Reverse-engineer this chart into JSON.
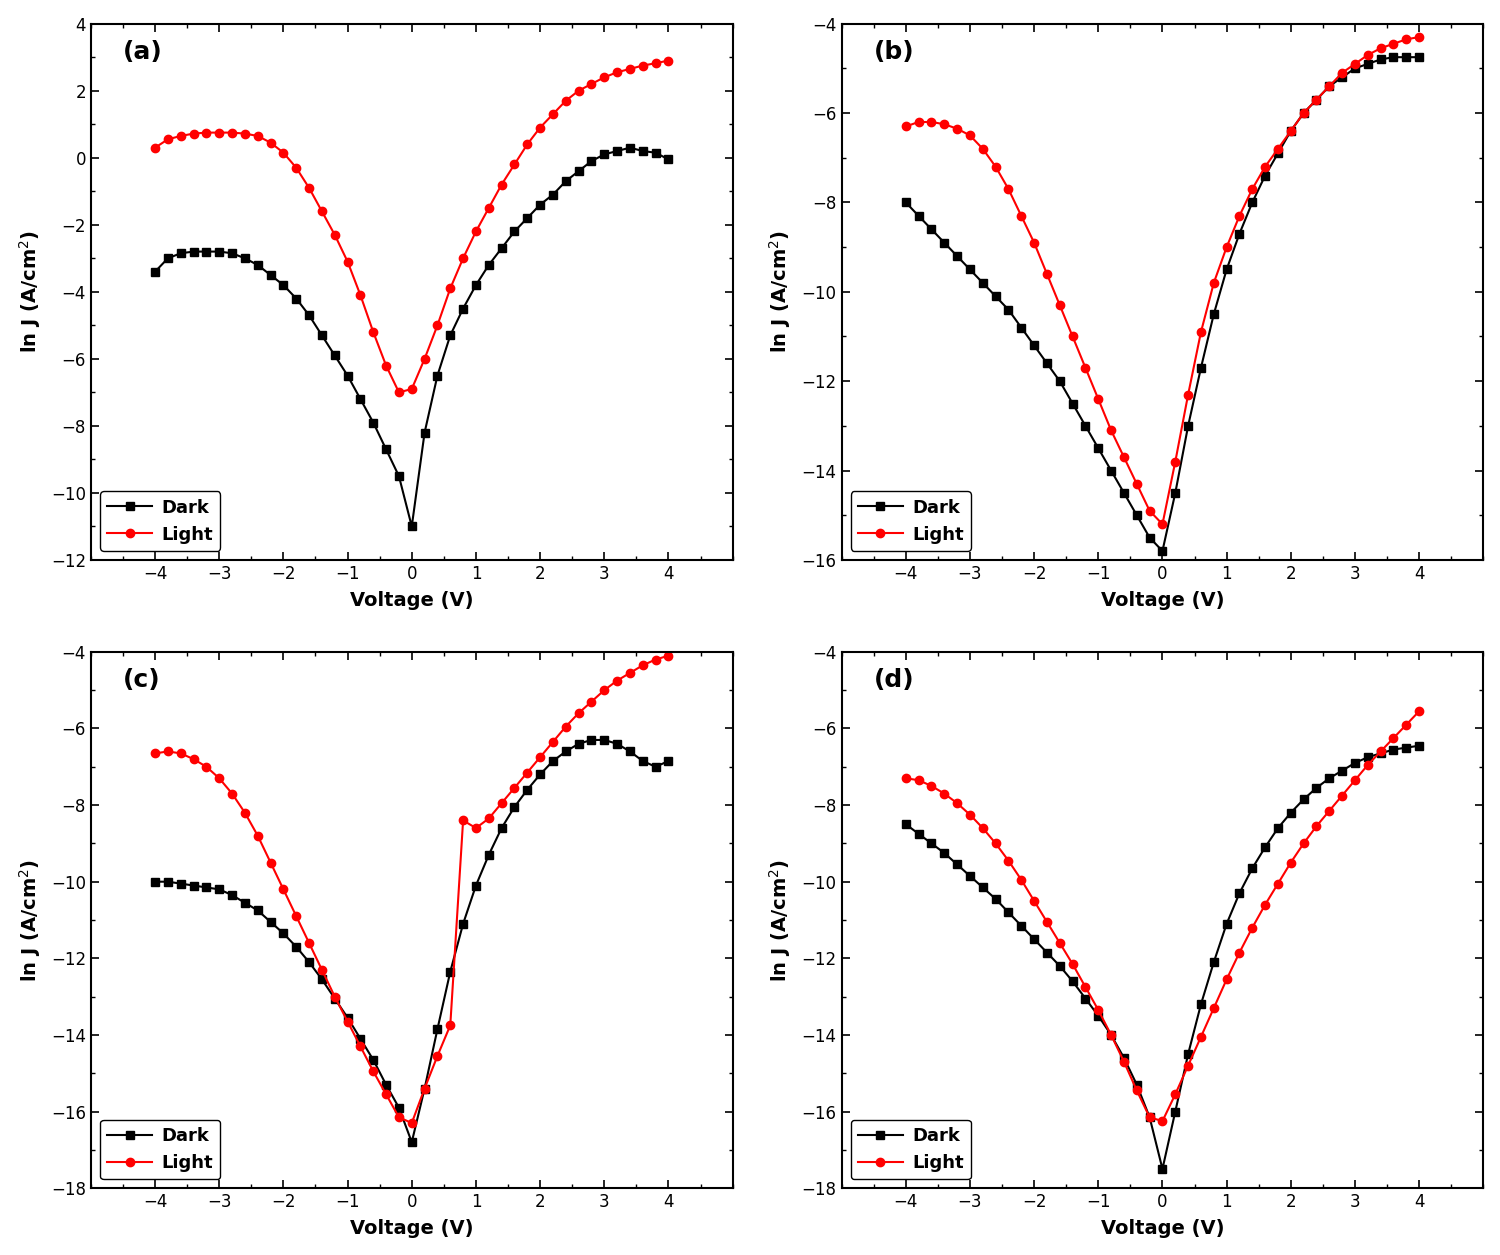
{
  "panels": [
    "(a)",
    "(b)",
    "(c)",
    "(d)"
  ],
  "xlabel": "Voltage (V)",
  "ylabel": "ln J (A/cm$^2$)",
  "dark_color": "#000000",
  "light_color": "#ff0000",
  "dark_marker": "s",
  "light_marker": "o",
  "legend_labels": [
    "Dark",
    "Light"
  ],
  "a_dark_x": [
    -4.0,
    -3.8,
    -3.6,
    -3.4,
    -3.2,
    -3.0,
    -2.8,
    -2.6,
    -2.4,
    -2.2,
    -2.0,
    -1.8,
    -1.6,
    -1.4,
    -1.2,
    -1.0,
    -0.8,
    -0.6,
    -0.4,
    -0.2,
    0.0,
    0.2,
    0.4,
    0.6,
    0.8,
    1.0,
    1.2,
    1.4,
    1.6,
    1.8,
    2.0,
    2.2,
    2.4,
    2.6,
    2.8,
    3.0,
    3.2,
    3.4,
    3.6,
    3.8,
    4.0
  ],
  "a_dark_y": [
    -3.4,
    -3.0,
    -2.85,
    -2.8,
    -2.8,
    -2.8,
    -2.85,
    -3.0,
    -3.2,
    -3.5,
    -3.8,
    -4.2,
    -4.7,
    -5.3,
    -5.9,
    -6.5,
    -7.2,
    -7.9,
    -8.7,
    -9.5,
    -11.0,
    -8.2,
    -6.5,
    -5.3,
    -4.5,
    -3.8,
    -3.2,
    -2.7,
    -2.2,
    -1.8,
    -1.4,
    -1.1,
    -0.7,
    -0.4,
    -0.1,
    0.1,
    0.2,
    0.3,
    0.2,
    0.15,
    -0.05
  ],
  "a_light_x": [
    -4.0,
    -3.8,
    -3.6,
    -3.4,
    -3.2,
    -3.0,
    -2.8,
    -2.6,
    -2.4,
    -2.2,
    -2.0,
    -1.8,
    -1.6,
    -1.4,
    -1.2,
    -1.0,
    -0.8,
    -0.6,
    -0.4,
    -0.2,
    0.0,
    0.2,
    0.4,
    0.6,
    0.8,
    1.0,
    1.2,
    1.4,
    1.6,
    1.8,
    2.0,
    2.2,
    2.4,
    2.6,
    2.8,
    3.0,
    3.2,
    3.4,
    3.6,
    3.8,
    4.0
  ],
  "a_light_y": [
    0.3,
    0.55,
    0.65,
    0.72,
    0.75,
    0.75,
    0.75,
    0.72,
    0.65,
    0.45,
    0.15,
    -0.3,
    -0.9,
    -1.6,
    -2.3,
    -3.1,
    -4.1,
    -5.2,
    -6.2,
    -7.0,
    -6.9,
    -6.0,
    -5.0,
    -3.9,
    -3.0,
    -2.2,
    -1.5,
    -0.8,
    -0.2,
    0.4,
    0.9,
    1.3,
    1.7,
    2.0,
    2.2,
    2.4,
    2.55,
    2.65,
    2.75,
    2.82,
    2.9
  ],
  "a_ylim": [
    -12,
    4
  ],
  "a_yticks": [
    -12,
    -10,
    -8,
    -6,
    -4,
    -2,
    0,
    2,
    4
  ],
  "b_dark_x": [
    -4.0,
    -3.8,
    -3.6,
    -3.4,
    -3.2,
    -3.0,
    -2.8,
    -2.6,
    -2.4,
    -2.2,
    -2.0,
    -1.8,
    -1.6,
    -1.4,
    -1.2,
    -1.0,
    -0.8,
    -0.6,
    -0.4,
    -0.2,
    0.0,
    0.2,
    0.4,
    0.6,
    0.8,
    1.0,
    1.2,
    1.4,
    1.6,
    1.8,
    2.0,
    2.2,
    2.4,
    2.6,
    2.8,
    3.0,
    3.2,
    3.4,
    3.6,
    3.8,
    4.0
  ],
  "b_dark_y": [
    -8.0,
    -8.3,
    -8.6,
    -8.9,
    -9.2,
    -9.5,
    -9.8,
    -10.1,
    -10.4,
    -10.8,
    -11.2,
    -11.6,
    -12.0,
    -12.5,
    -13.0,
    -13.5,
    -14.0,
    -14.5,
    -15.0,
    -15.5,
    -15.8,
    -14.5,
    -13.0,
    -11.7,
    -10.5,
    -9.5,
    -8.7,
    -8.0,
    -7.4,
    -6.9,
    -6.4,
    -6.0,
    -5.7,
    -5.4,
    -5.2,
    -5.0,
    -4.9,
    -4.8,
    -4.75,
    -4.75,
    -4.75
  ],
  "b_light_x": [
    -4.0,
    -3.8,
    -3.6,
    -3.4,
    -3.2,
    -3.0,
    -2.8,
    -2.6,
    -2.4,
    -2.2,
    -2.0,
    -1.8,
    -1.6,
    -1.4,
    -1.2,
    -1.0,
    -0.8,
    -0.6,
    -0.4,
    -0.2,
    0.0,
    0.2,
    0.4,
    0.6,
    0.8,
    1.0,
    1.2,
    1.4,
    1.6,
    1.8,
    2.0,
    2.2,
    2.4,
    2.6,
    2.8,
    3.0,
    3.2,
    3.4,
    3.6,
    3.8,
    4.0
  ],
  "b_light_y": [
    -6.3,
    -6.2,
    -6.2,
    -6.25,
    -6.35,
    -6.5,
    -6.8,
    -7.2,
    -7.7,
    -8.3,
    -8.9,
    -9.6,
    -10.3,
    -11.0,
    -11.7,
    -12.4,
    -13.1,
    -13.7,
    -14.3,
    -14.9,
    -15.2,
    -13.8,
    -12.3,
    -10.9,
    -9.8,
    -9.0,
    -8.3,
    -7.7,
    -7.2,
    -6.8,
    -6.4,
    -6.0,
    -5.7,
    -5.4,
    -5.1,
    -4.9,
    -4.7,
    -4.55,
    -4.45,
    -4.35,
    -4.3
  ],
  "b_ylim": [
    -16,
    -4
  ],
  "b_yticks": [
    -16,
    -14,
    -12,
    -10,
    -8,
    -6,
    -4
  ],
  "c_dark_x": [
    -4.0,
    -3.8,
    -3.6,
    -3.4,
    -3.2,
    -3.0,
    -2.8,
    -2.6,
    -2.4,
    -2.2,
    -2.0,
    -1.8,
    -1.6,
    -1.4,
    -1.2,
    -1.0,
    -0.8,
    -0.6,
    -0.4,
    -0.2,
    0.0,
    0.2,
    0.4,
    0.6,
    0.8,
    1.0,
    1.2,
    1.4,
    1.6,
    1.8,
    2.0,
    2.2,
    2.4,
    2.6,
    2.8,
    3.0,
    3.2,
    3.4,
    3.6,
    3.8,
    4.0
  ],
  "c_dark_y": [
    -10.0,
    -10.0,
    -10.05,
    -10.1,
    -10.15,
    -10.2,
    -10.35,
    -10.55,
    -10.75,
    -11.05,
    -11.35,
    -11.7,
    -12.1,
    -12.55,
    -13.05,
    -13.55,
    -14.1,
    -14.65,
    -15.3,
    -15.9,
    -16.8,
    -15.4,
    -13.85,
    -12.35,
    -11.1,
    -10.1,
    -9.3,
    -8.6,
    -8.05,
    -7.6,
    -7.2,
    -6.85,
    -6.6,
    -6.4,
    -6.3,
    -6.3,
    -6.4,
    -6.6,
    -6.85,
    -7.0,
    -6.85
  ],
  "c_light_x": [
    -4.0,
    -3.8,
    -3.6,
    -3.4,
    -3.2,
    -3.0,
    -2.8,
    -2.6,
    -2.4,
    -2.2,
    -2.0,
    -1.8,
    -1.6,
    -1.4,
    -1.2,
    -1.0,
    -0.8,
    -0.6,
    -0.4,
    -0.2,
    0.0,
    0.2,
    0.4,
    0.6,
    0.8,
    1.0,
    1.2,
    1.4,
    1.6,
    1.8,
    2.0,
    2.2,
    2.4,
    2.6,
    2.8,
    3.0,
    3.2,
    3.4,
    3.6,
    3.8,
    4.0
  ],
  "c_light_y": [
    -6.65,
    -6.6,
    -6.65,
    -6.8,
    -7.0,
    -7.3,
    -7.7,
    -8.2,
    -8.8,
    -9.5,
    -10.2,
    -10.9,
    -11.6,
    -12.3,
    -13.0,
    -13.65,
    -14.3,
    -14.95,
    -15.55,
    -16.15,
    -16.3,
    -15.4,
    -14.55,
    -13.75,
    -8.4,
    -8.6,
    -8.35,
    -7.95,
    -7.55,
    -7.15,
    -6.75,
    -6.35,
    -5.95,
    -5.6,
    -5.3,
    -5.0,
    -4.75,
    -4.55,
    -4.35,
    -4.2,
    -4.1
  ],
  "c_ylim": [
    -18,
    -4
  ],
  "c_yticks": [
    -18,
    -16,
    -14,
    -12,
    -10,
    -8,
    -6,
    -4
  ],
  "d_dark_x": [
    -4.0,
    -3.8,
    -3.6,
    -3.4,
    -3.2,
    -3.0,
    -2.8,
    -2.6,
    -2.4,
    -2.2,
    -2.0,
    -1.8,
    -1.6,
    -1.4,
    -1.2,
    -1.0,
    -0.8,
    -0.6,
    -0.4,
    -0.2,
    0.0,
    0.2,
    0.4,
    0.6,
    0.8,
    1.0,
    1.2,
    1.4,
    1.6,
    1.8,
    2.0,
    2.2,
    2.4,
    2.6,
    2.8,
    3.0,
    3.2,
    3.4,
    3.6,
    3.8,
    4.0
  ],
  "d_dark_y": [
    -8.5,
    -8.75,
    -9.0,
    -9.25,
    -9.55,
    -9.85,
    -10.15,
    -10.45,
    -10.8,
    -11.15,
    -11.5,
    -11.85,
    -12.2,
    -12.6,
    -13.05,
    -13.5,
    -14.0,
    -14.6,
    -15.3,
    -16.15,
    -17.5,
    -16.0,
    -14.5,
    -13.2,
    -12.1,
    -11.1,
    -10.3,
    -9.65,
    -9.1,
    -8.6,
    -8.2,
    -7.85,
    -7.55,
    -7.3,
    -7.1,
    -6.9,
    -6.75,
    -6.65,
    -6.55,
    -6.5,
    -6.45
  ],
  "d_light_x": [
    -4.0,
    -3.8,
    -3.6,
    -3.4,
    -3.2,
    -3.0,
    -2.8,
    -2.6,
    -2.4,
    -2.2,
    -2.0,
    -1.8,
    -1.6,
    -1.4,
    -1.2,
    -1.0,
    -0.8,
    -0.6,
    -0.4,
    -0.2,
    0.0,
    0.2,
    0.4,
    0.6,
    0.8,
    1.0,
    1.2,
    1.4,
    1.6,
    1.8,
    2.0,
    2.2,
    2.4,
    2.6,
    2.8,
    3.0,
    3.2,
    3.4,
    3.6,
    3.8,
    4.0
  ],
  "d_light_y": [
    -7.3,
    -7.35,
    -7.5,
    -7.7,
    -7.95,
    -8.25,
    -8.6,
    -9.0,
    -9.45,
    -9.95,
    -10.5,
    -11.05,
    -11.6,
    -12.15,
    -12.75,
    -13.35,
    -14.0,
    -14.7,
    -15.45,
    -16.15,
    -16.25,
    -15.55,
    -14.8,
    -14.05,
    -13.3,
    -12.55,
    -11.85,
    -11.2,
    -10.6,
    -10.05,
    -9.5,
    -9.0,
    -8.55,
    -8.15,
    -7.75,
    -7.35,
    -6.95,
    -6.6,
    -6.25,
    -5.9,
    -5.55
  ],
  "d_ylim": [
    -18,
    -4
  ],
  "d_yticks": [
    -18,
    -16,
    -14,
    -12,
    -10,
    -8,
    -6,
    -4
  ]
}
